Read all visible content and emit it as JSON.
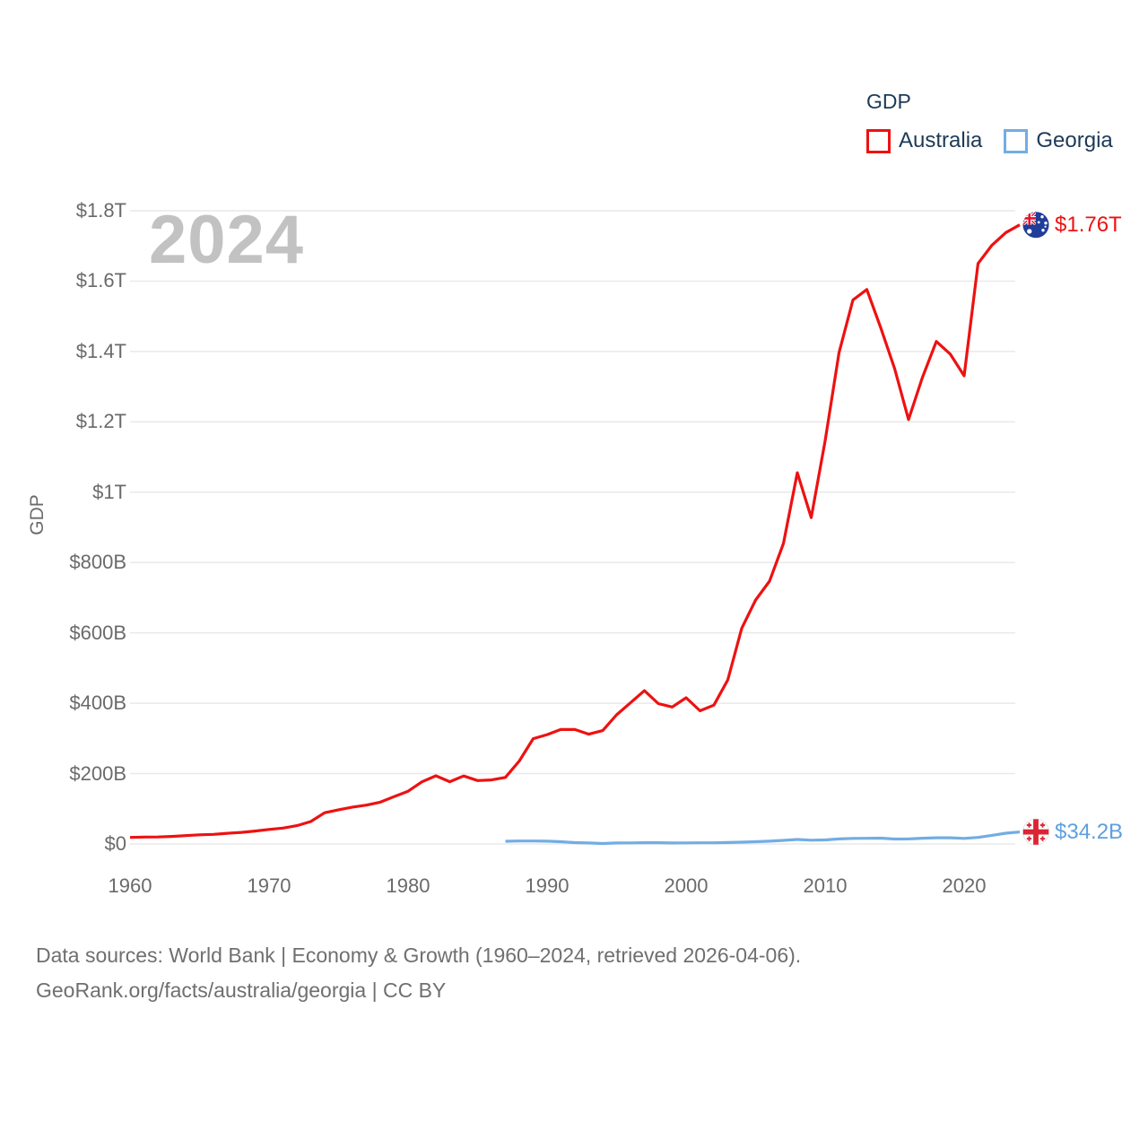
{
  "legend": {
    "title": "GDP",
    "series": [
      {
        "label": "Australia",
        "color": "#ee1111"
      },
      {
        "label": "Georgia",
        "color": "#72ade4"
      }
    ]
  },
  "watermark": "2024",
  "y_axis_title": "GDP",
  "end_labels": {
    "australia": "$1.76T",
    "georgia": "$34.2B"
  },
  "footer": {
    "line1": "Data sources: World Bank | Economy & Growth (1960–2024, retrieved 2026-04-06).",
    "line2": "GeoRank.org/facts/australia/georgia | CC BY"
  },
  "icons": {
    "australia_marker": "australia-flag-icon",
    "georgia_marker": "georgia-flag-icon"
  },
  "chart_data": {
    "type": "line",
    "title": "GDP",
    "xlabel": "",
    "ylabel": "GDP",
    "unit": "billions of current US$",
    "xlim": [
      1960,
      2024
    ],
    "ylim": [
      0,
      1800
    ],
    "grid": "horizontal",
    "legend_position": "top-right",
    "x_ticks": [
      1960,
      1970,
      1980,
      1990,
      2000,
      2010,
      2020
    ],
    "y_tick_values": [
      0,
      200,
      400,
      600,
      800,
      1000,
      1200,
      1400,
      1600,
      1800
    ],
    "y_tick_labels": [
      "$0",
      "$200B",
      "$400B",
      "$600B",
      "$800B",
      "$1T",
      "$1.2T",
      "$1.4T",
      "$1.6T",
      "$1.8T"
    ],
    "series": [
      {
        "name": "Australia",
        "color": "#ee1111",
        "end_value_label": "$1.76T",
        "start_year": 1960,
        "values_billion_usd": [
          18.6,
          19.7,
          19.9,
          21.5,
          23.8,
          26.0,
          27.3,
          30.4,
          32.9,
          36.6,
          41.3,
          45.2,
          51.9,
          63.7,
          88.8,
          97.2,
          104.9,
          110.3,
          118.8,
          134.6,
          149.8,
          176.6,
          193.8,
          176.9,
          193.3,
          180.2,
          182.0,
          189.1,
          235.8,
          299.3,
          310.8,
          325.7,
          325.3,
          312.0,
          322.2,
          367.2,
          401.3,
          435.7,
          399.0,
          389.4,
          415.6,
          378.5,
          394.6,
          466.5,
          613.0,
          693.4,
          747.0,
          853.9,
          1055.3,
          927.8,
          1146.1,
          1396.6,
          1546.2,
          1576.2,
          1467.5,
          1351.3,
          1206.5,
          1326.2,
          1428.5,
          1392.7,
          1330.9,
          1650.0,
          1702.0,
          1738.0,
          1760.0
        ]
      },
      {
        "name": "Georgia",
        "color": "#72ade4",
        "end_value_label": "$34.2B",
        "start_year": 1987,
        "values_billion_usd": [
          7.6,
          8.5,
          8.3,
          7.8,
          6.3,
          3.7,
          2.7,
          1.3,
          2.7,
          3.1,
          3.5,
          3.6,
          2.8,
          3.1,
          3.2,
          3.4,
          4.0,
          5.1,
          6.4,
          7.8,
          10.2,
          12.8,
          10.8,
          11.6,
          14.4,
          15.8,
          16.1,
          16.5,
          14.0,
          14.4,
          16.2,
          17.6,
          17.5,
          15.8,
          18.7,
          24.6,
          30.5,
          34.2
        ]
      }
    ]
  }
}
